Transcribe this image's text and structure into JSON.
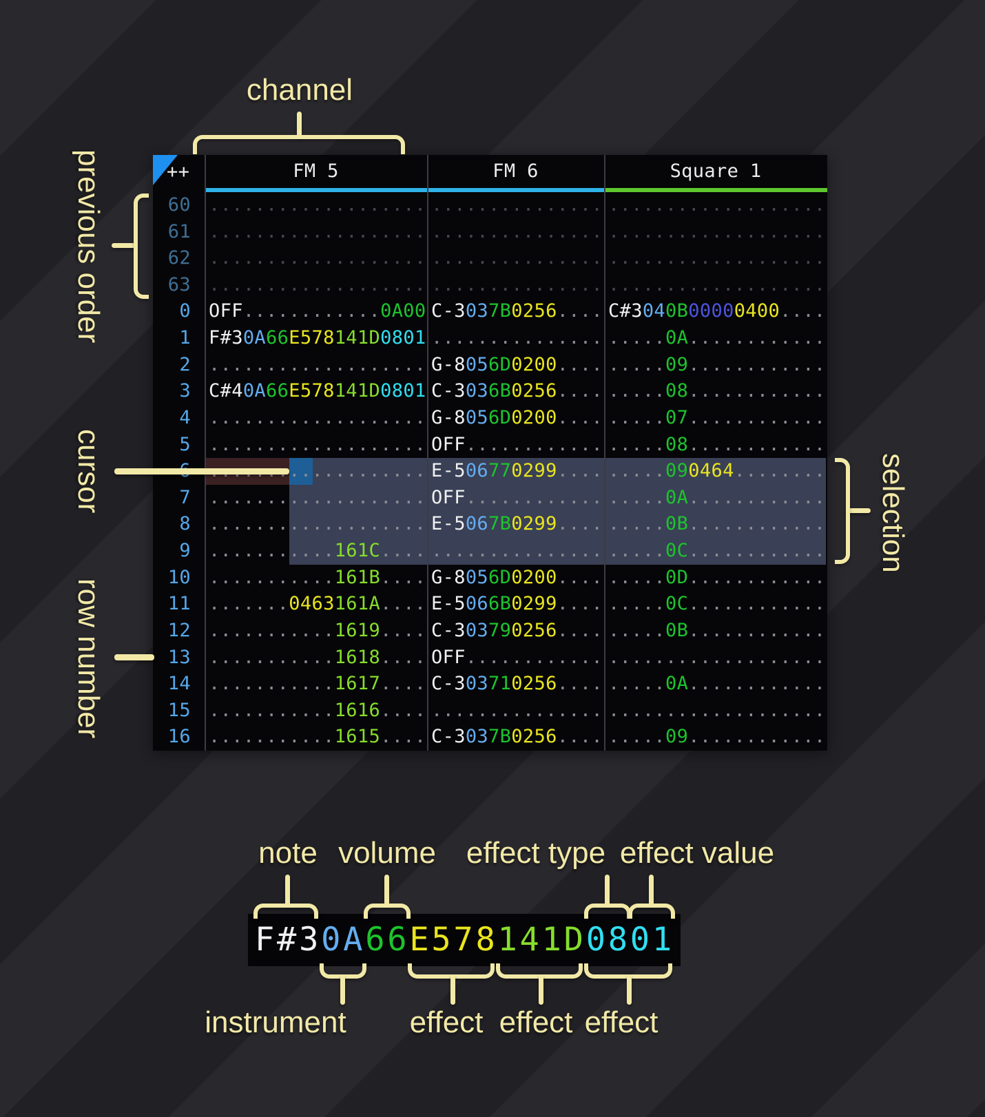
{
  "palette": {
    "annotation": "#f2e9a7",
    "table_bg": "#060609",
    "separator": "#3c3c42",
    "header_text": "#ececec",
    "triangle": "#1e90ef",
    "note": "#f1f1f1",
    "instrument": "#64adf0",
    "volume": "#1dc42d",
    "fx_yellow": "#e9e51e",
    "fx_lime": "#86dd2b",
    "fx_cyan": "#30dff0",
    "fx_green": "#1dc42d",
    "fx_indigo": "#4d54e0",
    "dots": "#8b8b92",
    "dots_dim": "#45454d",
    "rownum": "#55a8ea",
    "rownum_dim": "#3e6f94",
    "underline_fm": "#2eb2e8",
    "underline_square": "#5fc72e",
    "selection_bg": "#3a4056",
    "cursor_bg": "#1e5f97",
    "cursor_row_bg": "#3c2123",
    "pattern_row_bg": "#1a2836",
    "alt_row_bg": "#1d1d20"
  },
  "annotations": {
    "channel": "channel",
    "previous_order": "previous order",
    "cursor": "cursor",
    "row_number": "row number",
    "selection": "selection"
  },
  "tracker": {
    "corner": "++",
    "channels": [
      {
        "name": "FM 5",
        "underline_key": "underline_fm"
      },
      {
        "name": "FM 6",
        "underline_key": "underline_fm"
      },
      {
        "name": "Square 1",
        "underline_key": "underline_square"
      }
    ],
    "state": {
      "cursor_row": "6",
      "selection_rows": "6-9"
    },
    "rows": [
      {
        "num": "60",
        "prev": true,
        "hl": "alt",
        "cells": [
          [
            {
              "d": 19
            }
          ],
          [
            {
              "d": 15
            }
          ],
          [
            {
              "d": 19
            }
          ]
        ]
      },
      {
        "num": "61",
        "prev": true,
        "hl": null,
        "cells": [
          [
            {
              "d": 19
            }
          ],
          [
            {
              "d": 15
            }
          ],
          [
            {
              "d": 19
            }
          ]
        ]
      },
      {
        "num": "62",
        "prev": true,
        "hl": null,
        "cells": [
          [
            {
              "d": 19
            }
          ],
          [
            {
              "d": 15
            }
          ],
          [
            {
              "d": 19
            }
          ]
        ]
      },
      {
        "num": "63",
        "prev": true,
        "hl": null,
        "cells": [
          [
            {
              "d": 19
            }
          ],
          [
            {
              "d": 15
            }
          ],
          [
            {
              "d": 19
            }
          ]
        ]
      },
      {
        "num": "0",
        "prev": false,
        "hl": "pat",
        "cells": [
          [
            {
              "t": "OFF",
              "c": "n"
            },
            {
              "d": 12
            },
            {
              "t": "0A00",
              "c": "g"
            }
          ],
          [
            {
              "t": "C-3",
              "c": "n"
            },
            {
              "t": "03",
              "c": "i"
            },
            {
              "t": "7B",
              "c": "v"
            },
            {
              "t": "0256",
              "c": "y"
            },
            {
              "d": 4
            }
          ],
          [
            {
              "t": "C#3",
              "c": "n"
            },
            {
              "t": "04",
              "c": "i"
            },
            {
              "t": "0B",
              "c": "v"
            },
            {
              "t": "0000",
              "c": "p"
            },
            {
              "t": "0400",
              "c": "y"
            },
            {
              "d": 4
            }
          ]
        ]
      },
      {
        "num": "1",
        "prev": false,
        "hl": null,
        "cells": [
          [
            {
              "t": "F#3",
              "c": "n"
            },
            {
              "t": "0A",
              "c": "i"
            },
            {
              "t": "66",
              "c": "v"
            },
            {
              "t": "E578",
              "c": "y"
            },
            {
              "t": "141D",
              "c": "l"
            },
            {
              "t": "0801",
              "c": "c"
            }
          ],
          [
            {
              "d": 15
            }
          ],
          [
            {
              "d": 5
            },
            {
              "t": "0A",
              "c": "v"
            },
            {
              "d": 12
            }
          ]
        ]
      },
      {
        "num": "2",
        "prev": false,
        "hl": null,
        "cells": [
          [
            {
              "d": 19
            }
          ],
          [
            {
              "t": "G-8",
              "c": "n"
            },
            {
              "t": "05",
              "c": "i"
            },
            {
              "t": "6D",
              "c": "v"
            },
            {
              "t": "0200",
              "c": "y"
            },
            {
              "d": 4
            }
          ],
          [
            {
              "d": 5
            },
            {
              "t": "09",
              "c": "v"
            },
            {
              "d": 12
            }
          ]
        ]
      },
      {
        "num": "3",
        "prev": false,
        "hl": null,
        "cells": [
          [
            {
              "t": "C#4",
              "c": "n"
            },
            {
              "t": "0A",
              "c": "i"
            },
            {
              "t": "66",
              "c": "v"
            },
            {
              "t": "E578",
              "c": "y"
            },
            {
              "t": "141D",
              "c": "l"
            },
            {
              "t": "0801",
              "c": "c"
            }
          ],
          [
            {
              "t": "C-3",
              "c": "n"
            },
            {
              "t": "03",
              "c": "i"
            },
            {
              "t": "6B",
              "c": "v"
            },
            {
              "t": "0256",
              "c": "y"
            },
            {
              "d": 4
            }
          ],
          [
            {
              "d": 5
            },
            {
              "t": "08",
              "c": "v"
            },
            {
              "d": 12
            }
          ]
        ]
      },
      {
        "num": "4",
        "prev": false,
        "hl": "alt",
        "cells": [
          [
            {
              "d": 19
            }
          ],
          [
            {
              "t": "G-8",
              "c": "n"
            },
            {
              "t": "05",
              "c": "i"
            },
            {
              "t": "6D",
              "c": "v"
            },
            {
              "t": "0200",
              "c": "y"
            },
            {
              "d": 4
            }
          ],
          [
            {
              "d": 5
            },
            {
              "t": "07",
              "c": "v"
            },
            {
              "d": 12
            }
          ]
        ]
      },
      {
        "num": "5",
        "prev": false,
        "hl": null,
        "cells": [
          [
            {
              "d": 19
            }
          ],
          [
            {
              "t": "OFF",
              "c": "n"
            },
            {
              "d": 12
            }
          ],
          [
            {
              "d": 5
            },
            {
              "t": "08",
              "c": "v"
            },
            {
              "d": 12
            }
          ]
        ]
      },
      {
        "num": "6",
        "prev": false,
        "hl": null,
        "cells": [
          [
            {
              "d": 19
            }
          ],
          [
            {
              "t": "E-5",
              "c": "n"
            },
            {
              "t": "06",
              "c": "i"
            },
            {
              "t": "77",
              "c": "v"
            },
            {
              "t": "0299",
              "c": "y"
            },
            {
              "d": 4
            }
          ],
          [
            {
              "d": 5
            },
            {
              "t": "09",
              "c": "v"
            },
            {
              "t": "0464",
              "c": "y"
            },
            {
              "d": 8
            }
          ]
        ]
      },
      {
        "num": "7",
        "prev": false,
        "hl": null,
        "cells": [
          [
            {
              "d": 19
            }
          ],
          [
            {
              "t": "OFF",
              "c": "n"
            },
            {
              "d": 12
            }
          ],
          [
            {
              "d": 5
            },
            {
              "t": "0A",
              "c": "v"
            },
            {
              "d": 12
            }
          ]
        ]
      },
      {
        "num": "8",
        "prev": false,
        "hl": "alt",
        "cells": [
          [
            {
              "d": 19
            }
          ],
          [
            {
              "t": "E-5",
              "c": "n"
            },
            {
              "t": "06",
              "c": "i"
            },
            {
              "t": "7B",
              "c": "v"
            },
            {
              "t": "0299",
              "c": "y"
            },
            {
              "d": 4
            }
          ],
          [
            {
              "d": 5
            },
            {
              "t": "0B",
              "c": "v"
            },
            {
              "d": 12
            }
          ]
        ]
      },
      {
        "num": "9",
        "prev": false,
        "hl": null,
        "cells": [
          [
            {
              "d": 11
            },
            {
              "t": "161C",
              "c": "l"
            },
            {
              "d": 4
            }
          ],
          [
            {
              "d": 15
            }
          ],
          [
            {
              "d": 5
            },
            {
              "t": "0C",
              "c": "v"
            },
            {
              "d": 12
            }
          ]
        ]
      },
      {
        "num": "10",
        "prev": false,
        "hl": null,
        "cells": [
          [
            {
              "d": 11
            },
            {
              "t": "161B",
              "c": "l"
            },
            {
              "d": 4
            }
          ],
          [
            {
              "t": "G-8",
              "c": "n"
            },
            {
              "t": "05",
              "c": "i"
            },
            {
              "t": "6D",
              "c": "v"
            },
            {
              "t": "0200",
              "c": "y"
            },
            {
              "d": 4
            }
          ],
          [
            {
              "d": 5
            },
            {
              "t": "0D",
              "c": "v"
            },
            {
              "d": 12
            }
          ]
        ]
      },
      {
        "num": "11",
        "prev": false,
        "hl": null,
        "cells": [
          [
            {
              "d": 7
            },
            {
              "t": "0463",
              "c": "y"
            },
            {
              "t": "161A",
              "c": "l"
            },
            {
              "d": 4
            }
          ],
          [
            {
              "t": "E-5",
              "c": "n"
            },
            {
              "t": "06",
              "c": "i"
            },
            {
              "t": "6B",
              "c": "v"
            },
            {
              "t": "0299",
              "c": "y"
            },
            {
              "d": 4
            }
          ],
          [
            {
              "d": 5
            },
            {
              "t": "0C",
              "c": "v"
            },
            {
              "d": 12
            }
          ]
        ]
      },
      {
        "num": "12",
        "prev": false,
        "hl": "alt",
        "cells": [
          [
            {
              "d": 11
            },
            {
              "t": "1619",
              "c": "l"
            },
            {
              "d": 4
            }
          ],
          [
            {
              "t": "C-3",
              "c": "n"
            },
            {
              "t": "03",
              "c": "i"
            },
            {
              "t": "79",
              "c": "v"
            },
            {
              "t": "0256",
              "c": "y"
            },
            {
              "d": 4
            }
          ],
          [
            {
              "d": 5
            },
            {
              "t": "0B",
              "c": "v"
            },
            {
              "d": 12
            }
          ]
        ]
      },
      {
        "num": "13",
        "prev": false,
        "hl": null,
        "cells": [
          [
            {
              "d": 11
            },
            {
              "t": "1618",
              "c": "l"
            },
            {
              "d": 4
            }
          ],
          [
            {
              "t": "OFF",
              "c": "n"
            },
            {
              "d": 12
            }
          ],
          [
            {
              "d": 19
            }
          ]
        ]
      },
      {
        "num": "14",
        "prev": false,
        "hl": null,
        "cells": [
          [
            {
              "d": 11
            },
            {
              "t": "1617",
              "c": "l"
            },
            {
              "d": 4
            }
          ],
          [
            {
              "t": "C-3",
              "c": "n"
            },
            {
              "t": "03",
              "c": "i"
            },
            {
              "t": "71",
              "c": "v"
            },
            {
              "t": "0256",
              "c": "y"
            },
            {
              "d": 4
            }
          ],
          [
            {
              "d": 5
            },
            {
              "t": "0A",
              "c": "v"
            },
            {
              "d": 12
            }
          ]
        ]
      },
      {
        "num": "15",
        "prev": false,
        "hl": null,
        "cells": [
          [
            {
              "d": 11
            },
            {
              "t": "1616",
              "c": "l"
            },
            {
              "d": 4
            }
          ],
          [
            {
              "d": 15
            }
          ],
          [
            {
              "d": 19
            }
          ]
        ]
      },
      {
        "num": "16",
        "prev": false,
        "hl": "pat",
        "cells": [
          [
            {
              "d": 11
            },
            {
              "t": "1615",
              "c": "l"
            },
            {
              "d": 4
            }
          ],
          [
            {
              "t": "C-3",
              "c": "n"
            },
            {
              "t": "03",
              "c": "i"
            },
            {
              "t": "7B",
              "c": "v"
            },
            {
              "t": "0256",
              "c": "y"
            },
            {
              "d": 4
            }
          ],
          [
            {
              "d": 5
            },
            {
              "t": "09",
              "c": "v"
            },
            {
              "d": 12
            }
          ]
        ]
      }
    ]
  },
  "legend": {
    "cell": [
      {
        "t": "F#3",
        "c": "n"
      },
      {
        "t": "0A",
        "c": "i"
      },
      {
        "t": "66",
        "c": "v"
      },
      {
        "t": "E578",
        "c": "y"
      },
      {
        "t": "141D",
        "c": "l"
      },
      {
        "t": "0801",
        "c": "c"
      }
    ],
    "top_labels": [
      {
        "text": "note"
      },
      {
        "text": "volume"
      },
      {
        "text": "effect type"
      },
      {
        "text": "effect value"
      }
    ],
    "bottom_labels": [
      {
        "text": "instrument"
      },
      {
        "text": "effect"
      },
      {
        "text": "effect"
      },
      {
        "text": "effect"
      }
    ]
  }
}
